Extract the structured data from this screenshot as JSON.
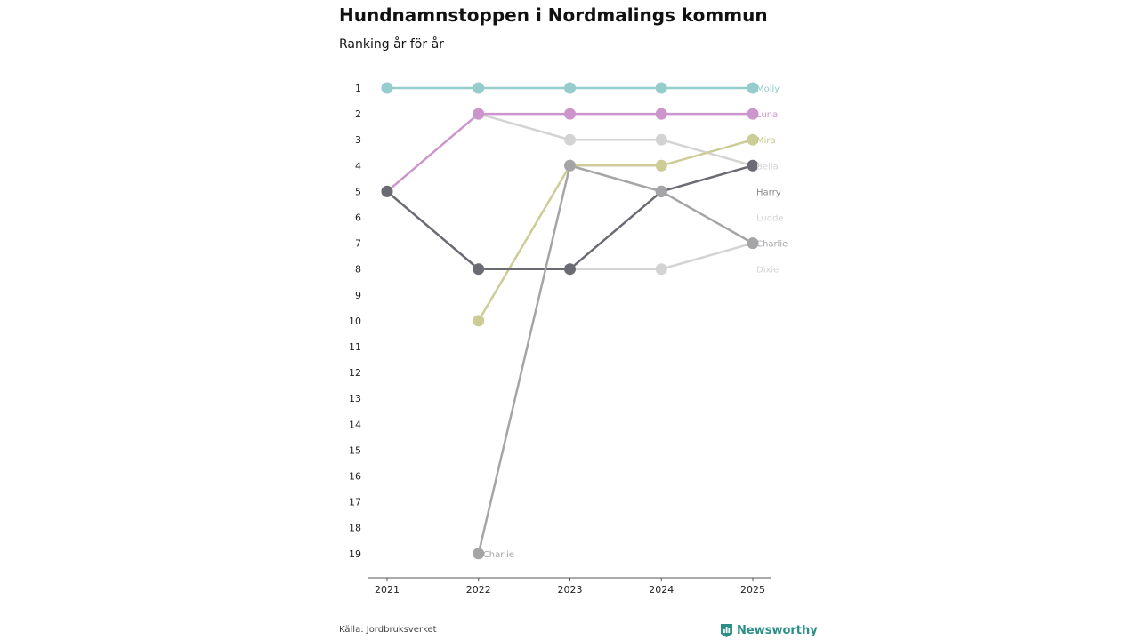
{
  "chart_data": {
    "type": "line",
    "title": "Hundnamnstoppen i Nordmalings kommun",
    "subtitle": "Ranking år för år",
    "source": "Källa: Jordbruksverket",
    "brand": "Newsworthy",
    "x": [
      "2021",
      "2022",
      "2023",
      "2024",
      "2025"
    ],
    "y_ticks": [
      "1",
      "2",
      "3",
      "4",
      "5",
      "6",
      "7",
      "8",
      "9",
      "10",
      "11",
      "12",
      "13",
      "14",
      "15",
      "16",
      "17",
      "18",
      "19"
    ],
    "ylim": [
      1,
      19
    ],
    "y_inverted": true,
    "grid": false,
    "series": [
      {
        "name": "Molly",
        "color": "#96cccc",
        "values": [
          1,
          1,
          1,
          1,
          1
        ]
      },
      {
        "name": "Luna",
        "color": "#cc96cc",
        "values": [
          5,
          2,
          2,
          2,
          2
        ]
      },
      {
        "name": "Mira",
        "color": "#cccc96",
        "values": [
          null,
          10,
          4,
          4,
          3
        ]
      },
      {
        "name": "Bella",
        "color": "#d3d3d3",
        "values": [
          null,
          2,
          3,
          3,
          4
        ]
      },
      {
        "name": "Harry",
        "color": "#6b6b73",
        "values": [
          5,
          8,
          8,
          5,
          4
        ]
      },
      {
        "name": "Ludde",
        "color": "#d3d3d3",
        "values": [
          5,
          8,
          8,
          8,
          7
        ]
      },
      {
        "name": "Charlie",
        "color": "#a5a5a8",
        "values": [
          null,
          19,
          4,
          5,
          7
        ]
      },
      {
        "name": "Dixie",
        "color": "#d3d3d3",
        "values": [
          null,
          null,
          4,
          5,
          null
        ]
      }
    ],
    "end_labels": [
      {
        "text": "Molly",
        "rank": 1,
        "color": "#96cccc"
      },
      {
        "text": "Luna",
        "rank": 2,
        "color": "#cc96cc"
      },
      {
        "text": "Mira",
        "rank": 3,
        "color": "#c6c68e"
      },
      {
        "text": "Bella",
        "rank": 4,
        "color": "#d3d3d3"
      },
      {
        "text": "Harry",
        "rank": 5,
        "color": "#8a8a90"
      },
      {
        "text": "Ludde",
        "rank": 6,
        "color": "#d3d3d3"
      },
      {
        "text": "Charlie",
        "rank": 7,
        "color": "#a5a5a8"
      },
      {
        "text": "Dixie",
        "rank": 8,
        "color": "#d3d3d3"
      }
    ],
    "annotation": {
      "text": "Charlie",
      "x": "2022",
      "rank": 19,
      "color": "#a5a5a8"
    }
  }
}
